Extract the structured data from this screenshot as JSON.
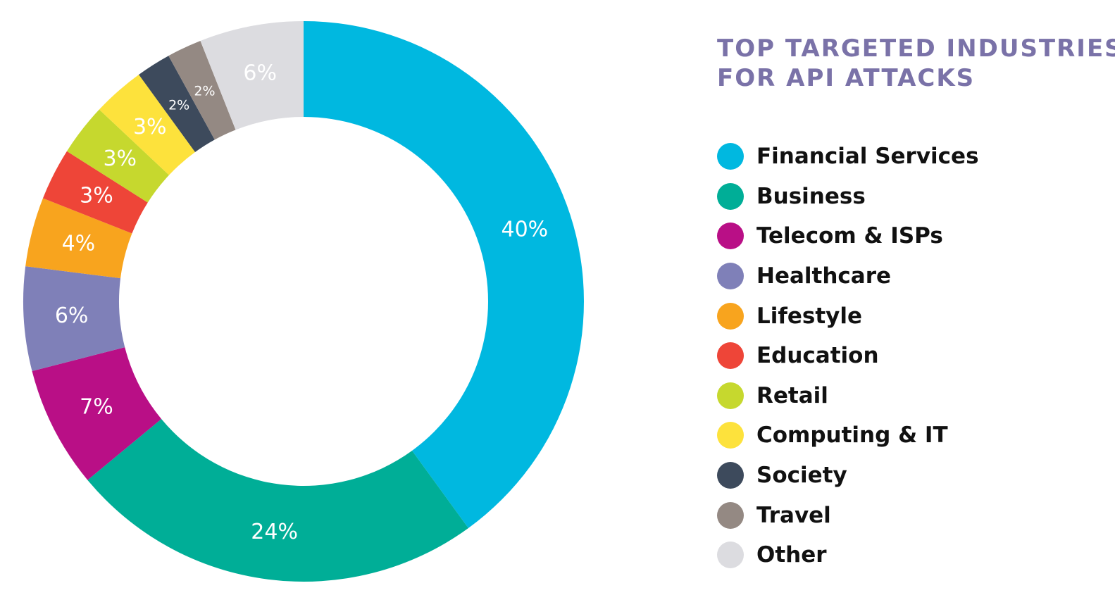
{
  "title_lines": [
    "TOP TARGETED INDUSTRIES",
    "FOR API ATTACKS"
  ],
  "colors": {
    "title": "#7a72a8",
    "label": "#ffffff"
  },
  "chart_data": {
    "type": "pie",
    "donut": true,
    "title": "TOP TARGETED INDUSTRIES FOR API ATTACKS",
    "legend_position": "right",
    "slices": [
      {
        "name": "Financial Services",
        "value": 40,
        "label": "40%",
        "color": "#00b8e0"
      },
      {
        "name": "Business",
        "value": 24,
        "label": "24%",
        "color": "#00ae97"
      },
      {
        "name": "Telecom & ISPs",
        "value": 7,
        "label": "7%",
        "color": "#b90f86"
      },
      {
        "name": "Healthcare",
        "value": 6,
        "label": "6%",
        "color": "#7f80b8"
      },
      {
        "name": "Lifestyle",
        "value": 4,
        "label": "4%",
        "color": "#f8a41e"
      },
      {
        "name": "Education",
        "value": 3,
        "label": "3%",
        "color": "#ee4538"
      },
      {
        "name": "Retail",
        "value": 3,
        "label": "3%",
        "color": "#c6d82e"
      },
      {
        "name": "Computing & IT",
        "value": 3,
        "label": "3%",
        "color": "#fde23c"
      },
      {
        "name": "Society",
        "value": 2,
        "label": "2%",
        "color": "#3d4a5c"
      },
      {
        "name": "Travel",
        "value": 2,
        "label": "2%",
        "color": "#948983"
      },
      {
        "name": "Other",
        "value": 6,
        "label": "6%",
        "color": "#dcdce0"
      }
    ]
  }
}
